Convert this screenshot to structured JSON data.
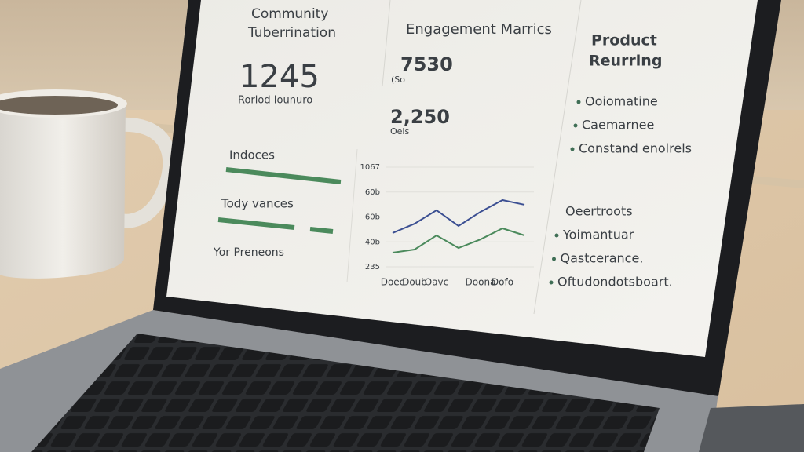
{
  "community": {
    "title_line1": "Community",
    "title_line2": "Tuberrination",
    "metric": "1245",
    "metric_label": "Rorlod Iounuro",
    "indices_label": "Indoces",
    "variances_label": "Tody vances",
    "footer": "Yor Preneons"
  },
  "engagement": {
    "title": "Engagement Marrics",
    "metrics": [
      {
        "value": "7530",
        "label": "(So"
      },
      {
        "value": "2,250",
        "label": "Oels"
      }
    ],
    "chart": {
      "type": "line",
      "categories": [
        "Doec",
        "Doub",
        "Oavc",
        null,
        "Doona",
        "Dofo",
        null
      ],
      "series": [
        {
          "color": "#3b4f92",
          "values": [
            517,
            595,
            707,
            576,
            694,
            792,
            753
          ]
        },
        {
          "color": "#4b8a5c",
          "values": [
            353,
            379,
            497,
            392,
            464,
            556,
            497
          ]
        }
      ],
      "ylim": [
        235,
        1067
      ],
      "yticks": [
        235,
        {
          "value": 443,
          "label": "40b"
        },
        {
          "value": 651,
          "label": "60b"
        },
        {
          "value": 859,
          "label": "60b"
        },
        1067
      ],
      "grid": true
    }
  },
  "product": {
    "title_line1": "Product",
    "title_line2": "Reurring",
    "items": [
      "Ooiomatine",
      "Caemarnee",
      "Constand enolrels"
    ],
    "section": "Oeertroots",
    "section_items": [
      "Yoimantuar",
      "Qastcerance.",
      "Oftudondotsboart."
    ]
  }
}
